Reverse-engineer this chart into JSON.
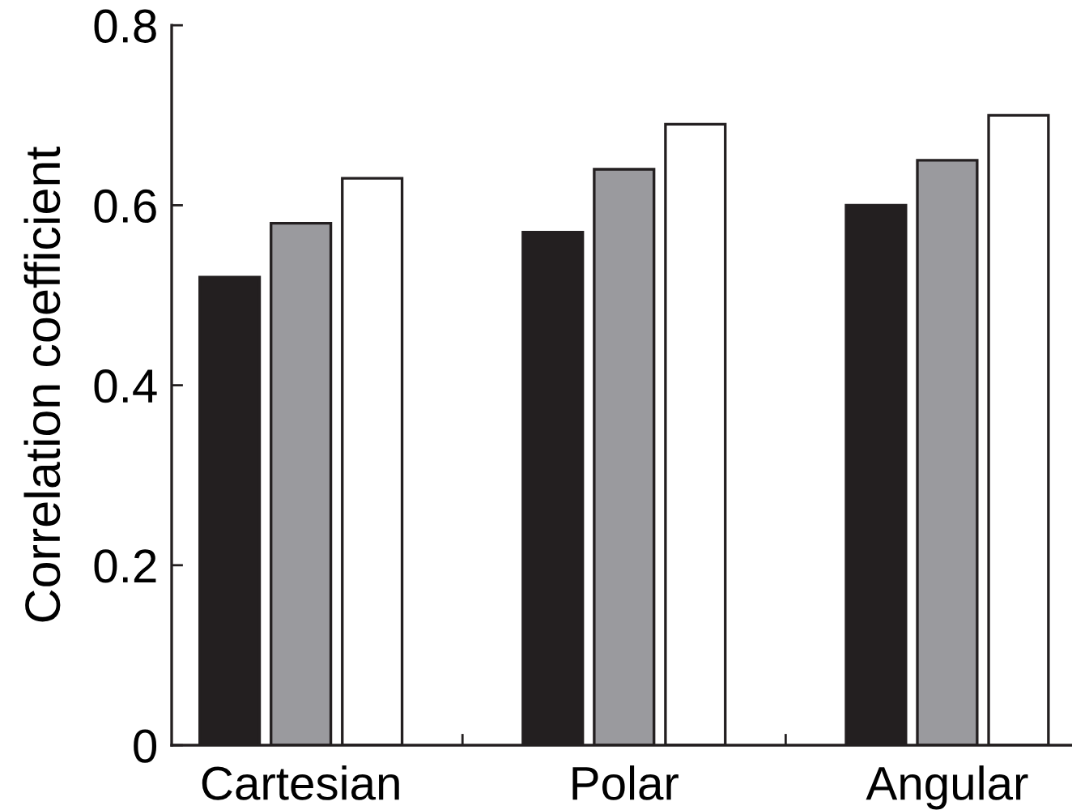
{
  "chart_data": {
    "type": "bar",
    "ylabel": "Correlation coefficient",
    "categories": [
      "Cartesian",
      "Polar",
      "Angular"
    ],
    "series": [
      {
        "color": "#231f20",
        "values": [
          0.52,
          0.57,
          0.6
        ]
      },
      {
        "color": "#9a9a9e",
        "values": [
          0.58,
          0.64,
          0.65
        ]
      },
      {
        "color": "#ffffff",
        "values": [
          0.63,
          0.69,
          0.7
        ]
      }
    ],
    "ylim": [
      0,
      0.8
    ],
    "yticks": [
      0,
      0.2,
      0.4,
      0.6,
      0.8
    ]
  }
}
